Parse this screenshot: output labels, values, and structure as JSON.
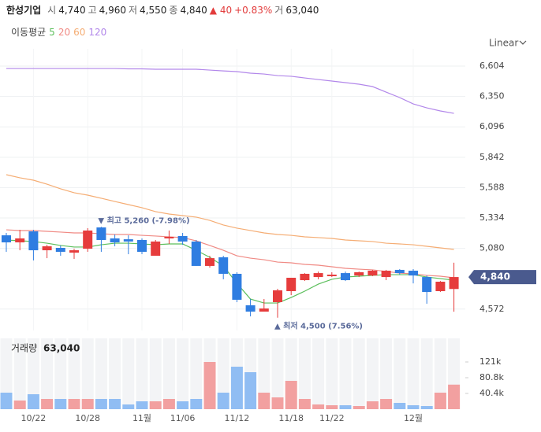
{
  "header": {
    "name": "한성기업",
    "quote": [
      {
        "label": "시",
        "value": "4,740"
      },
      {
        "label": "고",
        "value": "4,960"
      },
      {
        "label": "저",
        "value": "4,550"
      },
      {
        "label": "종",
        "value": "4,840"
      }
    ],
    "change": "▲ 40",
    "change_pct": "+0.83%",
    "volume_label": "거",
    "volume": "63,040"
  },
  "chart_data": {
    "type": "candlestick",
    "categories": [
      null,
      null,
      "10/22",
      null,
      null,
      null,
      "10/28",
      null,
      null,
      null,
      "11월",
      null,
      null,
      "11/06",
      null,
      null,
      null,
      "11/12",
      null,
      null,
      null,
      "11/18",
      null,
      null,
      "11/22",
      null,
      null,
      null,
      null,
      null,
      "12월",
      null,
      null,
      null
    ],
    "open": [
      5189,
      5130,
      5222,
      5064,
      5084,
      5044,
      5077,
      5255,
      5163,
      5156,
      5150,
      5018,
      5163,
      5183,
      5137,
      4933,
      5005,
      4867,
      4604,
      4551,
      4630,
      4722,
      4814,
      4840,
      4847,
      4873,
      4853,
      4853,
      4840,
      4900,
      4893,
      4840,
      4722,
      4740
    ],
    "high": [
      5209,
      5235,
      5235,
      5110,
      5104,
      5077,
      5249,
      5260,
      5196,
      5189,
      5163,
      5150,
      5229,
      5209,
      5150,
      5018,
      5018,
      4880,
      4656,
      4656,
      4742,
      4834,
      4873,
      4886,
      4880,
      4886,
      4886,
      4900,
      4900,
      4906,
      4906,
      4853,
      4807,
      4960
    ],
    "low": [
      5051,
      5064,
      4979,
      4998,
      5018,
      4992,
      5051,
      5051,
      5097,
      5031,
      5031,
      5018,
      5117,
      5110,
      4933,
      4919,
      4821,
      4630,
      4511,
      4551,
      4500,
      4689,
      4807,
      4821,
      4840,
      4807,
      4840,
      4847,
      4814,
      4860,
      4787,
      4617,
      4715,
      4550
    ],
    "close": [
      5130,
      5163,
      5064,
      5097,
      5051,
      5064,
      5229,
      5150,
      5130,
      5137,
      5051,
      5137,
      5176,
      5137,
      4933,
      4998,
      4867,
      4650,
      4551,
      4577,
      4729,
      4834,
      4867,
      4873,
      4860,
      4814,
      4880,
      4893,
      4893,
      4873,
      4853,
      4715,
      4801,
      4840
    ],
    "up_color": "#e63c3c",
    "down_color": "#2f7de1",
    "ma_title": "이동평균",
    "series": [
      {
        "name": "5",
        "color": "#5cbf5c",
        "values": [
          5150,
          5143,
          5137,
          5123,
          5104,
          5091,
          5091,
          5110,
          5123,
          5123,
          5117,
          5110,
          5117,
          5117,
          5064,
          5005,
          4933,
          4788,
          4656,
          4623,
          4623,
          4669,
          4722,
          4781,
          4821,
          4840,
          4847,
          4854,
          4860,
          4860,
          4860,
          4840,
          4827,
          4814
        ]
      },
      {
        "name": "20",
        "color": "#f08a84",
        "values": [
          5235,
          5229,
          5229,
          5222,
          5216,
          5209,
          5209,
          5202,
          5196,
          5196,
          5189,
          5183,
          5176,
          5170,
          5143,
          5104,
          5064,
          5018,
          4998,
          4985,
          4965,
          4959,
          4946,
          4939,
          4926,
          4913,
          4906,
          4900,
          4887,
          4873,
          4867,
          4854,
          4847,
          4834
        ]
      },
      {
        "name": "60",
        "color": "#f5ad74",
        "values": [
          5696,
          5670,
          5650,
          5617,
          5578,
          5545,
          5525,
          5499,
          5472,
          5446,
          5420,
          5387,
          5367,
          5354,
          5341,
          5314,
          5275,
          5249,
          5229,
          5209,
          5196,
          5189,
          5176,
          5170,
          5163,
          5150,
          5143,
          5137,
          5123,
          5117,
          5110,
          5097,
          5084,
          5071
        ]
      },
      {
        "name": "120",
        "color": "#b287ea",
        "values": [
          6584,
          6584,
          6584,
          6584,
          6584,
          6584,
          6584,
          6584,
          6584,
          6581,
          6581,
          6578,
          6578,
          6578,
          6578,
          6571,
          6564,
          6558,
          6545,
          6538,
          6525,
          6519,
          6505,
          6492,
          6479,
          6466,
          6453,
          6433,
          6387,
          6341,
          6288,
          6255,
          6229,
          6209
        ]
      }
    ],
    "ylim": [
      4393,
      6749
    ],
    "yticks": [
      {
        "value": 4572,
        "label": "4,572"
      },
      {
        "value": 5080,
        "label": "5,080"
      },
      {
        "value": 5334,
        "label": "5,334"
      },
      {
        "value": 5588,
        "label": "5,588"
      },
      {
        "value": 5842,
        "label": "5,842"
      },
      {
        "value": 6096,
        "label": "6,096"
      },
      {
        "value": 6350,
        "label": "6,350"
      },
      {
        "value": 6604,
        "label": "6,604"
      }
    ],
    "scale_label": "Linear",
    "price_tag": {
      "value": 4840,
      "label": "4,840"
    },
    "annotations": [
      {
        "kind": "high",
        "text": "▼ 최고 5,260 (-7.98%)"
      },
      {
        "kind": "low",
        "text": "▲ 최저 4,500 (7.56%)"
      }
    ],
    "volume": {
      "title": "거래량",
      "title_value": "63,040",
      "up_color": "#f2a0a0",
      "down_color": "#90bdf3",
      "values": [
        42420,
        22220,
        38380,
        26260,
        26260,
        26260,
        26260,
        26260,
        26260,
        12120,
        20200,
        20200,
        26260,
        20200,
        26260,
        121200,
        42420,
        109080,
        94940,
        42420,
        30300,
        72720,
        26260,
        12120,
        10100,
        10100,
        8080,
        20200,
        26260,
        16160,
        10100,
        8080,
        42420,
        63040
      ],
      "ylim": [
        0,
        181800
      ],
      "yticks": [
        {
          "value": 40400,
          "label": "40.4k"
        },
        {
          "value": 80800,
          "label": "80.8k"
        },
        {
          "value": 121200,
          "label": "121k"
        }
      ]
    }
  }
}
